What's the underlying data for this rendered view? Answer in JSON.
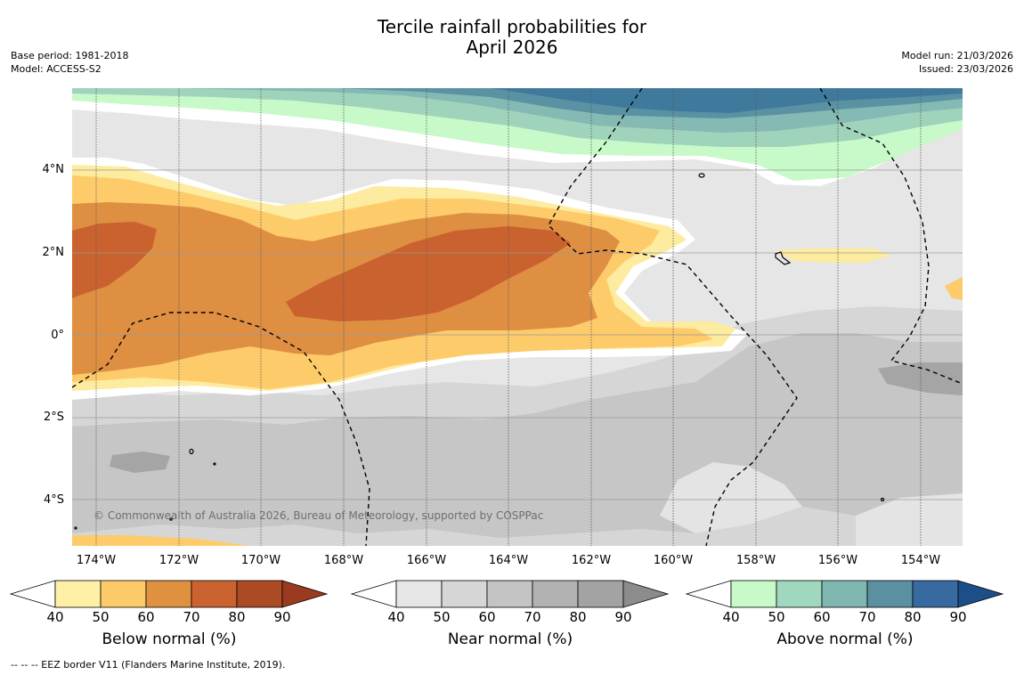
{
  "header": {
    "title_line1": "Tercile rainfall probabilities for",
    "title_line2": "April 2026",
    "base_period": "Base period: 1981-2018",
    "model": "Model: ACCESS-S2",
    "model_run": "Model run: 21/03/2026",
    "issued": "Issued: 23/03/2026"
  },
  "map": {
    "lat_labels": [
      "4°N",
      "2°N",
      "0°",
      "2°S",
      "4°S"
    ],
    "lon_labels": [
      "174°W",
      "172°W",
      "170°W",
      "168°W",
      "166°W",
      "164°W",
      "162°W",
      "160°W",
      "158°W",
      "156°W",
      "154°W"
    ],
    "copyright": "© Commonwealth of Australia 2026, Bureau of Meteorology, supported by COSPPac",
    "colors": {
      "neutral_light": "#e6e6e6",
      "neutral_mid": "#d6d6d6",
      "neutral_dark": "#c6c6c6",
      "neutral_darker": "#a5a5a5",
      "below_50": "#fdeb9f",
      "below_60": "#fdcb6a",
      "below_70": "#df8f42",
      "below_80": "#ca622f",
      "above_40": "#c8f9c8",
      "above_50": "#9fd3bb",
      "above_60": "#84b9b4",
      "above_70": "#5a92a3",
      "above_80": "#3f7a9c"
    }
  },
  "colorbars": [
    {
      "title": "Below normal (%)",
      "ticks": [
        "40",
        "50",
        "60",
        "70",
        "80",
        "90"
      ],
      "colors": [
        "#ffffff",
        "#fff0a8",
        "#fdca69",
        "#e0913f",
        "#cb6331",
        "#ac4a24",
        "#9a3a1e"
      ]
    },
    {
      "title": "Near normal (%)",
      "ticks": [
        "40",
        "50",
        "60",
        "70",
        "80",
        "90"
      ],
      "colors": [
        "#ffffff",
        "#e6e6e6",
        "#d6d6d6",
        "#c4c4c4",
        "#b2b2b2",
        "#a3a3a3",
        "#8c8c8c"
      ]
    },
    {
      "title": "Above normal (%)",
      "ticks": [
        "40",
        "50",
        "60",
        "70",
        "80",
        "90"
      ],
      "colors": [
        "#ffffff",
        "#c8f9c8",
        "#a0d7bf",
        "#7fb6b0",
        "#5a90a0",
        "#366aa0",
        "#1c4e88"
      ]
    }
  ],
  "footnote": "--  --  -- EEZ border V11 (Flanders Marine Institute, 2019)."
}
